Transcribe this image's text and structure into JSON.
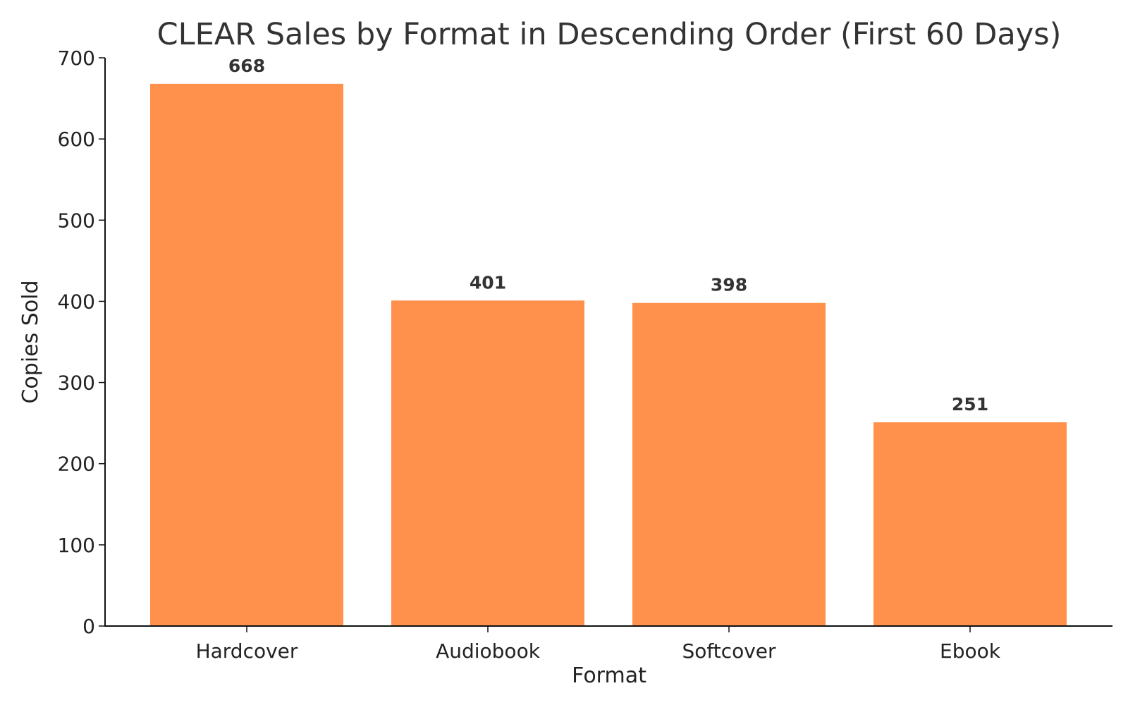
{
  "chart_data": {
    "type": "bar",
    "title": "CLEAR Sales by Format in Descending Order (First 60 Days)",
    "xlabel": "Format",
    "ylabel": "Copies Sold",
    "categories": [
      "Hardcover",
      "Audiobook",
      "Softcover",
      "Ebook"
    ],
    "values": [
      668,
      401,
      398,
      251
    ],
    "value_labels": [
      "668",
      "401",
      "398",
      "251"
    ],
    "ylim": [
      0,
      700
    ],
    "yticks": [
      0,
      100,
      200,
      300,
      400,
      500,
      600,
      700
    ],
    "ytick_labels": [
      "0",
      "100",
      "200",
      "300",
      "400",
      "500",
      "600",
      "700"
    ],
    "grid": false,
    "legend": "none",
    "bar_color": "#ff914d",
    "text_color": "#333333",
    "axis_color": "#111111"
  }
}
